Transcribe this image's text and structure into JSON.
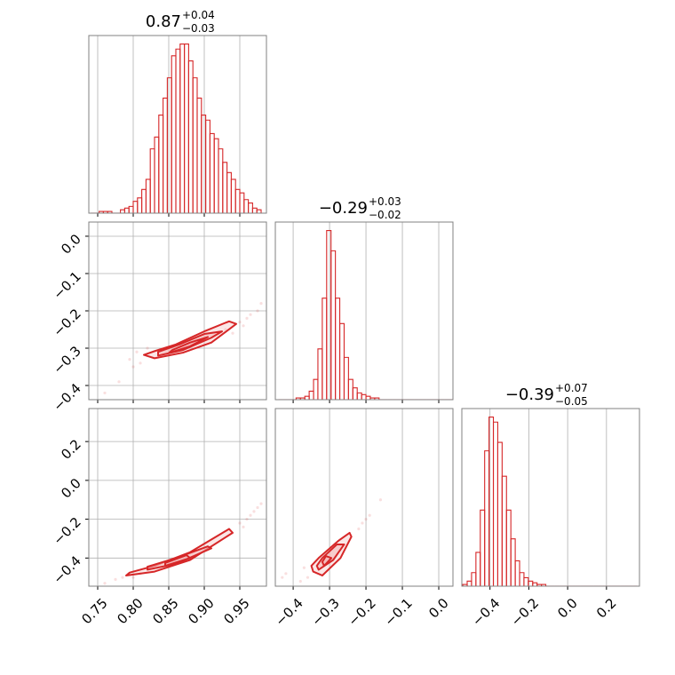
{
  "chart_data": [
    {
      "type": "histogram",
      "title": {
        "value": "0.87",
        "upper": "+0.04",
        "lower": "−0.03"
      },
      "color": "#d62728",
      "grid": true,
      "xlim": [
        0.7375,
        0.9875
      ],
      "ylim": [
        0,
        105
      ],
      "xticks": [
        0.75,
        {
          "value": 0.8,
          "label": "0.80"
        },
        0.85,
        {
          "value": 0.9,
          "label": "0.90"
        },
        0.95
      ],
      "bins": [
        0.74,
        0.746,
        0.752,
        0.758,
        0.764,
        0.77,
        0.776,
        0.782,
        0.788,
        0.794,
        0.8,
        0.806,
        0.812,
        0.818,
        0.824,
        0.83,
        0.836,
        0.842,
        0.848,
        0.854,
        0.86,
        0.866,
        0.872,
        0.878,
        0.884,
        0.89,
        0.896,
        0.902,
        0.908,
        0.914,
        0.92,
        0.926,
        0.932,
        0.938,
        0.944,
        0.95,
        0.956,
        0.962,
        0.968,
        0.974,
        0.98
      ],
      "values": [
        0,
        0,
        1,
        1,
        1,
        0,
        0,
        2,
        3,
        4,
        7,
        9,
        14,
        20,
        38,
        45,
        58,
        68,
        80,
        93,
        97,
        100,
        100,
        90,
        80,
        68,
        58,
        55,
        47,
        44,
        38,
        30,
        24,
        20,
        14,
        12,
        8,
        6,
        3,
        2
      ]
    },
    {
      "type": "contour",
      "color": "#d62728",
      "fill": "#f4b6b7",
      "grid": true,
      "xlim": [
        0.7375,
        0.9875
      ],
      "ylim": [
        -0.438,
        0.038
      ],
      "xticks": [
        0.75,
        {
          "value": 0.8,
          "label": "0.80"
        },
        0.85,
        {
          "value": 0.9,
          "label": "0.90"
        },
        0.95
      ],
      "yticks": [
        {
          "value": 0,
          "label": "0.0"
        },
        {
          "value": -0.1,
          "label": "−0.1"
        },
        {
          "value": -0.2,
          "label": "−0.2"
        },
        {
          "value": -0.3,
          "label": "−0.3"
        },
        {
          "value": -0.4,
          "label": "−0.4"
        }
      ],
      "levels": [
        {
          "x": [
            0.815,
            0.83,
            0.87,
            0.91,
            0.945,
            0.935,
            0.9,
            0.86,
            0.83
          ],
          "y": [
            -0.318,
            -0.327,
            -0.312,
            -0.285,
            -0.235,
            -0.228,
            -0.255,
            -0.29,
            -0.308
          ]
        },
        {
          "x": [
            0.835,
            0.87,
            0.91,
            0.925,
            0.9,
            0.865,
            0.835
          ],
          "y": [
            -0.32,
            -0.305,
            -0.272,
            -0.255,
            -0.262,
            -0.29,
            -0.31
          ]
        },
        {
          "x": [
            0.85,
            0.88,
            0.905,
            0.88,
            0.855
          ],
          "y": [
            -0.313,
            -0.295,
            -0.27,
            -0.285,
            -0.305
          ]
        }
      ],
      "samples": {
        "x": [
          0.76,
          0.78,
          0.795,
          0.805,
          0.81,
          0.82,
          0.93,
          0.95,
          0.96,
          0.965,
          0.975,
          0.98,
          0.8,
          0.94,
          0.955
        ],
        "y": [
          -0.42,
          -0.39,
          -0.33,
          -0.31,
          -0.34,
          -0.3,
          -0.25,
          -0.23,
          -0.22,
          -0.21,
          -0.2,
          -0.18,
          -0.35,
          -0.26,
          -0.24
        ]
      }
    },
    {
      "type": "histogram",
      "title": {
        "value": "−0.29",
        "upper": "+0.03",
        "lower": "−0.02"
      },
      "color": "#d62728",
      "grid": true,
      "xlim": [
        -0.449,
        0.039
      ],
      "ylim": [
        0,
        105
      ],
      "xticks": [
        {
          "value": -0.4,
          "label": "−0.4"
        },
        {
          "value": -0.3,
          "label": "−0.3"
        },
        {
          "value": -0.2,
          "label": "−0.2"
        },
        {
          "value": -0.1,
          "label": "−0.1"
        },
        {
          "value": 0,
          "label": "0.0"
        }
      ],
      "bins": [
        -0.44,
        -0.428,
        -0.416,
        -0.404,
        -0.392,
        -0.38,
        -0.368,
        -0.356,
        -0.344,
        -0.332,
        -0.32,
        -0.308,
        -0.296,
        -0.284,
        -0.272,
        -0.26,
        -0.248,
        -0.236,
        -0.224,
        -0.212,
        -0.2,
        -0.188,
        -0.176,
        -0.164,
        -0.152,
        -0.14,
        -0.128,
        -0.116,
        -0.104,
        -0.092,
        -0.08,
        -0.068,
        -0.056,
        -0.044,
        -0.032,
        -0.02,
        -0.008,
        0.004,
        0.016,
        0.028,
        0.04
      ],
      "values": [
        0,
        0,
        0,
        0,
        1,
        1,
        2,
        5,
        12,
        30,
        60,
        100,
        88,
        60,
        45,
        25,
        12,
        7,
        4,
        3,
        2,
        1,
        1,
        0,
        0,
        0,
        0,
        0,
        0,
        0,
        0,
        0,
        0,
        0,
        0,
        0,
        0,
        0,
        0,
        0
      ]
    },
    {
      "type": "contour",
      "color": "#d62728",
      "fill": "#f4b6b7",
      "grid": true,
      "xlim": [
        0.7375,
        0.9875
      ],
      "ylim": [
        -0.545,
        0.37
      ],
      "xticks": [
        0.75,
        {
          "value": 0.8,
          "label": "0.80"
        },
        0.85,
        {
          "value": 0.9,
          "label": "0.90"
        },
        0.95
      ],
      "yticks": [
        0.2,
        {
          "value": 0,
          "label": "0.0"
        },
        {
          "value": -0.2,
          "label": "−0.2"
        },
        {
          "value": -0.4,
          "label": "−0.4"
        }
      ],
      "levels": [
        {
          "x": [
            0.79,
            0.83,
            0.88,
            0.94,
            0.935,
            0.88,
            0.83,
            0.795
          ],
          "y": [
            -0.49,
            -0.47,
            -0.41,
            -0.27,
            -0.25,
            -0.37,
            -0.44,
            -0.475
          ]
        },
        {
          "x": [
            0.82,
            0.86,
            0.91,
            0.905,
            0.86,
            0.82
          ],
          "y": [
            -0.46,
            -0.43,
            -0.35,
            -0.34,
            -0.4,
            -0.445
          ]
        },
        {
          "x": [
            0.845,
            0.88,
            0.875,
            0.845
          ],
          "y": [
            -0.44,
            -0.4,
            -0.385,
            -0.425
          ]
        }
      ],
      "samples": {
        "x": [
          0.76,
          0.775,
          0.785,
          0.8,
          0.95,
          0.96,
          0.965,
          0.97,
          0.975,
          0.98,
          0.955,
          0.81
        ],
        "y": [
          -0.53,
          -0.51,
          -0.5,
          -0.5,
          -0.22,
          -0.2,
          -0.18,
          -0.16,
          -0.14,
          -0.12,
          -0.24,
          -0.48
        ]
      }
    },
    {
      "type": "contour",
      "color": "#d62728",
      "fill": "#f4b6b7",
      "grid": true,
      "xlim": [
        -0.449,
        0.039
      ],
      "ylim": [
        -0.545,
        0.37
      ],
      "xticks": [
        {
          "value": -0.4,
          "label": "−0.4"
        },
        {
          "value": -0.3,
          "label": "−0.3"
        },
        {
          "value": -0.2,
          "label": "−0.2"
        },
        {
          "value": -0.1,
          "label": "−0.1"
        },
        {
          "value": 0,
          "label": "0.0"
        }
      ],
      "levels": [
        {
          "x": [
            -0.345,
            -0.32,
            -0.27,
            -0.24,
            -0.245,
            -0.275,
            -0.33,
            -0.35
          ],
          "y": [
            -0.47,
            -0.49,
            -0.4,
            -0.29,
            -0.27,
            -0.31,
            -0.4,
            -0.44
          ]
        },
        {
          "x": [
            -0.33,
            -0.29,
            -0.26,
            -0.28,
            -0.32,
            -0.335
          ],
          "y": [
            -0.46,
            -0.41,
            -0.33,
            -0.33,
            -0.4,
            -0.44
          ]
        },
        {
          "x": [
            -0.315,
            -0.295,
            -0.31,
            -0.32
          ],
          "y": [
            -0.44,
            -0.4,
            -0.39,
            -0.42
          ]
        }
      ],
      "samples": {
        "x": [
          -0.43,
          -0.42,
          -0.38,
          -0.36,
          -0.22,
          -0.2,
          -0.19,
          -0.16,
          -0.21,
          -0.37
        ],
        "y": [
          -0.5,
          -0.48,
          -0.52,
          -0.5,
          -0.25,
          -0.2,
          -0.18,
          -0.1,
          -0.22,
          -0.45
        ]
      }
    },
    {
      "type": "histogram",
      "title": {
        "value": "−0.39",
        "upper": "+0.07",
        "lower": "−0.05"
      },
      "color": "#d62728",
      "grid": true,
      "xlim": [
        -0.545,
        0.37
      ],
      "ylim": [
        0,
        105
      ],
      "xticks": [
        {
          "value": -0.4,
          "label": "−0.4"
        },
        {
          "value": -0.2,
          "label": "−0.2"
        },
        {
          "value": 0,
          "label": "0.0"
        },
        0.2
      ],
      "bins": [
        -0.54,
        -0.5175,
        -0.495,
        -0.4725,
        -0.45,
        -0.4275,
        -0.405,
        -0.3825,
        -0.36,
        -0.3375,
        -0.315,
        -0.2925,
        -0.27,
        -0.2475,
        -0.225,
        -0.2025,
        -0.18,
        -0.1575,
        -0.135,
        -0.1125,
        -0.09,
        -0.0675,
        -0.045,
        -0.0225,
        0,
        0.0225,
        0.045,
        0.0675,
        0.09,
        0.1125,
        0.135,
        0.1575,
        0.18,
        0.2025,
        0.225,
        0.2475,
        0.27,
        0.2925,
        0.315,
        0.3375,
        0.36
      ],
      "values": [
        1,
        3,
        8,
        20,
        45,
        80,
        100,
        97,
        85,
        65,
        45,
        28,
        15,
        8,
        5,
        3,
        2,
        1,
        1,
        0,
        0,
        0,
        0,
        0,
        0,
        0,
        0,
        0,
        0,
        0,
        0,
        0,
        0,
        0,
        0,
        0,
        0,
        0,
        0,
        0
      ]
    }
  ]
}
